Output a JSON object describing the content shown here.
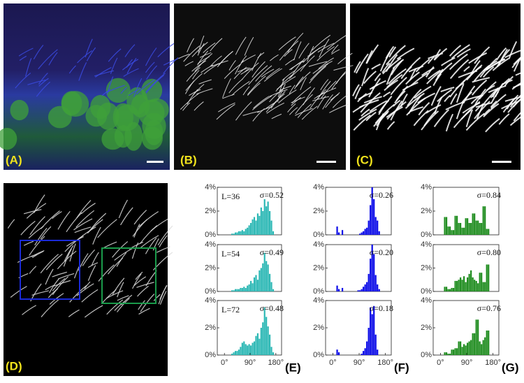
{
  "panels": [
    {
      "label": "(A)"
    },
    {
      "label": "(B)"
    },
    {
      "label": "(C)"
    },
    {
      "label": "(D)"
    }
  ],
  "column_labels": [
    "(E)",
    "(F)",
    "(G)"
  ],
  "chart_data": [
    {
      "type": "histogram",
      "color": "#2ab7b4",
      "length_label": "L=36",
      "sigma_label": "σ=0.52",
      "bins": [
        0,
        6,
        12,
        18,
        24,
        30,
        36,
        42,
        48,
        54,
        60,
        66,
        72,
        78,
        84,
        90,
        96,
        102,
        108,
        114,
        120,
        126,
        132,
        138,
        144,
        150,
        156,
        162,
        168,
        174,
        180
      ],
      "values": [
        0,
        0,
        0,
        0,
        0.1,
        0.1,
        0.2,
        0.2,
        0.3,
        0.3,
        0.4,
        0.3,
        0.5,
        0.6,
        0.8,
        1.0,
        1.3,
        1.5,
        1.2,
        1.8,
        1.6,
        2.3,
        2.0,
        3.0,
        2.4,
        2.8,
        2.0,
        1.2,
        0.3,
        0
      ],
      "xlim": [
        -25,
        200
      ],
      "ylim": [
        0,
        4
      ],
      "yticks": [
        {
          "value": 0,
          "label": "0%"
        },
        {
          "value": 2,
          "label": "2%"
        },
        {
          "value": 4,
          "label": "4%"
        }
      ]
    },
    {
      "type": "histogram",
      "color": "#0a0ae8",
      "sigma_label": "σ=0.26",
      "bins": [
        0,
        6,
        12,
        18,
        24,
        30,
        36,
        42,
        48,
        54,
        60,
        66,
        72,
        78,
        84,
        90,
        96,
        102,
        108,
        114,
        120,
        126,
        132,
        138,
        144,
        150,
        156,
        162,
        168,
        174,
        180
      ],
      "values": [
        0,
        0,
        0.7,
        0.2,
        0,
        0.4,
        0,
        0,
        0,
        0,
        0,
        0,
        0,
        0,
        0,
        0.1,
        0.2,
        0.3,
        0.5,
        0.6,
        1.2,
        2.5,
        4.0,
        3.0,
        1.5,
        1.2,
        0.3,
        0,
        0,
        0
      ],
      "xlim": [
        -25,
        200
      ],
      "ylim": [
        0,
        4
      ],
      "yticks": [
        {
          "value": 0,
          "label": "0%"
        },
        {
          "value": 2,
          "label": "2%"
        },
        {
          "value": 4,
          "label": "4%"
        }
      ]
    },
    {
      "type": "histogram",
      "color": "#1e8c1e",
      "sigma_label": "σ=0.84",
      "bins": [
        0,
        6,
        12,
        18,
        24,
        30,
        36,
        42,
        48,
        54,
        60,
        66,
        72,
        78,
        84,
        90,
        96,
        102,
        108,
        114,
        120,
        126,
        132,
        138,
        144,
        150,
        156,
        162,
        168,
        174,
        180
      ],
      "values": [
        0,
        0,
        1.5,
        1.5,
        0.7,
        0.7,
        0.4,
        0.4,
        1.6,
        1.6,
        1.0,
        1.0,
        0.6,
        0.6,
        1.4,
        1.4,
        1.0,
        1.0,
        1.8,
        1.8,
        1.2,
        1.2,
        1.0,
        1.0,
        2.4,
        2.4,
        0.5,
        0.5,
        0,
        0
      ],
      "xlim": [
        -25,
        200
      ],
      "ylim": [
        0,
        4
      ],
      "yticks": [
        {
          "value": 0,
          "label": "0%"
        },
        {
          "value": 2,
          "label": "2%"
        },
        {
          "value": 4,
          "label": "4%"
        }
      ]
    },
    {
      "type": "histogram",
      "color": "#2ab7b4",
      "length_label": "L=54",
      "sigma_label": "σ=0.49",
      "bins": [
        0,
        6,
        12,
        18,
        24,
        30,
        36,
        42,
        48,
        54,
        60,
        66,
        72,
        78,
        84,
        90,
        96,
        102,
        108,
        114,
        120,
        126,
        132,
        138,
        144,
        150,
        156,
        162,
        168,
        174,
        180
      ],
      "values": [
        0,
        0,
        0,
        0,
        0.1,
        0.1,
        0.2,
        0.2,
        0.2,
        0.3,
        0.3,
        0.4,
        0.3,
        0.5,
        0.6,
        0.9,
        0.7,
        1.2,
        1.4,
        1.0,
        1.8,
        2.0,
        2.4,
        3.3,
        2.6,
        2.3,
        1.5,
        0.8,
        0.2,
        0
      ],
      "xlim": [
        -25,
        200
      ],
      "ylim": [
        0,
        4
      ],
      "yticks": [
        {
          "value": 0,
          "label": "0%"
        },
        {
          "value": 2,
          "label": "2%"
        },
        {
          "value": 4,
          "label": "4%"
        }
      ]
    },
    {
      "type": "histogram",
      "color": "#0a0ae8",
      "sigma_label": "σ=0.20",
      "bins": [
        0,
        6,
        12,
        18,
        24,
        30,
        36,
        42,
        48,
        54,
        60,
        66,
        72,
        78,
        84,
        90,
        96,
        102,
        108,
        114,
        120,
        126,
        132,
        138,
        144,
        150,
        156,
        162,
        168,
        174,
        180
      ],
      "values": [
        0,
        0,
        0.5,
        0.2,
        0,
        0.3,
        0,
        0,
        0,
        0,
        0,
        0,
        0,
        0,
        0.1,
        0.1,
        0.2,
        0.4,
        0.6,
        0.8,
        1.5,
        2.8,
        4.0,
        3.2,
        1.4,
        0.6,
        0.2,
        0,
        0,
        0
      ],
      "xlim": [
        -25,
        200
      ],
      "ylim": [
        0,
        4
      ],
      "yticks": [
        {
          "value": 0,
          "label": "0%"
        },
        {
          "value": 2,
          "label": "2%"
        },
        {
          "value": 4,
          "label": "4%"
        }
      ]
    },
    {
      "type": "histogram",
      "color": "#1e8c1e",
      "sigma_label": "σ=0.80",
      "bins": [
        0,
        6,
        12,
        18,
        24,
        30,
        36,
        42,
        48,
        54,
        60,
        66,
        72,
        78,
        84,
        90,
        96,
        102,
        108,
        114,
        120,
        126,
        132,
        138,
        144,
        150,
        156,
        162,
        168,
        174,
        180
      ],
      "values": [
        0,
        0,
        0.4,
        0.4,
        0.2,
        0.2,
        0.3,
        0.3,
        0.9,
        0.9,
        1.0,
        1.2,
        1.0,
        1.3,
        0.8,
        1.2,
        1.5,
        1.8,
        1.2,
        1.0,
        0.9,
        0.7,
        1.6,
        1.6,
        0.8,
        0.8,
        2.3,
        2.3,
        0,
        0
      ],
      "xlim": [
        -25,
        200
      ],
      "ylim": [
        0,
        4
      ],
      "yticks": [
        {
          "value": 0,
          "label": "0%"
        },
        {
          "value": 2,
          "label": "2%"
        },
        {
          "value": 4,
          "label": "4%"
        }
      ]
    },
    {
      "type": "histogram",
      "color": "#2ab7b4",
      "length_label": "L=72",
      "sigma_label": "σ=0.48",
      "bins": [
        0,
        6,
        12,
        18,
        24,
        30,
        36,
        42,
        48,
        54,
        60,
        66,
        72,
        78,
        84,
        90,
        96,
        102,
        108,
        114,
        120,
        126,
        132,
        138,
        144,
        150,
        156,
        162,
        168,
        174,
        180
      ],
      "values": [
        0,
        0,
        0,
        0,
        0.1,
        0.2,
        0.3,
        0.3,
        0.4,
        0.6,
        0.9,
        1.0,
        0.8,
        0.7,
        0.8,
        0.7,
        0.9,
        1.0,
        1.4,
        1.6,
        1.2,
        2.0,
        2.4,
        3.5,
        2.8,
        2.1,
        1.5,
        0.6,
        0.2,
        0
      ],
      "xlim": [
        -25,
        200
      ],
      "ylim": [
        0,
        4
      ],
      "yticks": [
        {
          "value": 0,
          "label": "0%"
        },
        {
          "value": 2,
          "label": "2%"
        },
        {
          "value": 4,
          "label": "4%"
        }
      ],
      "xticks": [
        {
          "value": 0,
          "label": "0°"
        },
        {
          "value": 90,
          "label": "90°"
        },
        {
          "value": 180,
          "label": "180°"
        }
      ]
    },
    {
      "type": "histogram",
      "color": "#0a0ae8",
      "sigma_label": "σ=0.18",
      "bins": [
        0,
        6,
        12,
        18,
        24,
        30,
        36,
        42,
        48,
        54,
        60,
        66,
        72,
        78,
        84,
        90,
        96,
        102,
        108,
        114,
        120,
        126,
        132,
        138,
        144,
        150,
        156,
        162,
        168,
        174,
        180
      ],
      "values": [
        0,
        0,
        0.4,
        0.2,
        0,
        0,
        0,
        0,
        0,
        0,
        0,
        0,
        0,
        0,
        0,
        0,
        0.1,
        0.3,
        0.5,
        1.0,
        2.0,
        3.5,
        3.0,
        3.6,
        1.5,
        0.4,
        0,
        0,
        0,
        0
      ],
      "xlim": [
        -25,
        200
      ],
      "ylim": [
        0,
        4
      ],
      "yticks": [
        {
          "value": 0,
          "label": "0%"
        },
        {
          "value": 2,
          "label": "2%"
        },
        {
          "value": 4,
          "label": "4%"
        }
      ],
      "xticks": [
        {
          "value": 0,
          "label": "0°"
        },
        {
          "value": 90,
          "label": "90°"
        },
        {
          "value": 180,
          "label": "180°"
        }
      ]
    },
    {
      "type": "histogram",
      "color": "#1e8c1e",
      "sigma_label": "σ=0.76",
      "bins": [
        0,
        6,
        12,
        18,
        24,
        30,
        36,
        42,
        48,
        54,
        60,
        66,
        72,
        78,
        84,
        90,
        96,
        102,
        108,
        114,
        120,
        126,
        132,
        138,
        144,
        150,
        156,
        162,
        168,
        174,
        180
      ],
      "values": [
        0,
        0,
        0.2,
        0.2,
        0.1,
        0.1,
        0.4,
        0.4,
        0.5,
        0.5,
        1.0,
        1.0,
        0.6,
        0.8,
        0.7,
        0.9,
        1.0,
        1.1,
        1.6,
        1.6,
        2.6,
        2.6,
        1.0,
        0.8,
        1.1,
        1.3,
        1.8,
        1.8,
        0,
        0
      ],
      "xlim": [
        -25,
        200
      ],
      "ylim": [
        0,
        4
      ],
      "yticks": [
        {
          "value": 0,
          "label": "0%"
        },
        {
          "value": 2,
          "label": "2%"
        },
        {
          "value": 4,
          "label": "4%"
        }
      ],
      "xticks": [
        {
          "value": 0,
          "label": "0°"
        },
        {
          "value": 90,
          "label": "90°"
        },
        {
          "value": 180,
          "label": "180°"
        }
      ]
    }
  ]
}
